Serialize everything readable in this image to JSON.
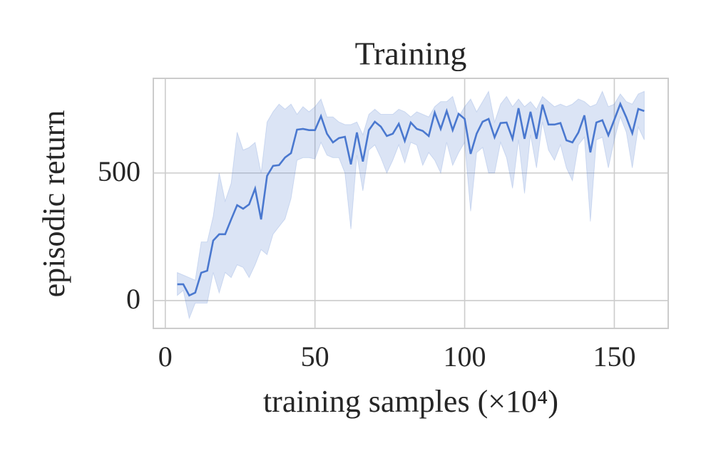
{
  "chart_data": {
    "type": "line",
    "title": "Training",
    "xlabel": "training samples (×10⁴)",
    "ylabel": "episodic return",
    "x": [
      4,
      6,
      8,
      10,
      12,
      14,
      16,
      18,
      20,
      22,
      24,
      26,
      28,
      30,
      32,
      34,
      36,
      38,
      40,
      42,
      44,
      46,
      48,
      50,
      52,
      54,
      56,
      58,
      60,
      62,
      64,
      66,
      68,
      70,
      72,
      74,
      76,
      78,
      80,
      82,
      84,
      86,
      88,
      90,
      92,
      94,
      96,
      98,
      100,
      102,
      104,
      106,
      108,
      110,
      112,
      114,
      116,
      118,
      120,
      122,
      124,
      126,
      128,
      130,
      132,
      134,
      136,
      138,
      140,
      142,
      144,
      146,
      148,
      150,
      152,
      154,
      156,
      158,
      160
    ],
    "series": [
      {
        "color": "#4a78cf",
        "values": [
          64,
          64,
          20,
          31,
          109,
          117,
          235,
          260,
          260,
          318,
          374,
          360,
          377,
          439,
          318,
          489,
          528,
          531,
          561,
          578,
          670,
          673,
          668,
          668,
          723,
          654,
          620,
          637,
          642,
          534,
          659,
          545,
          668,
          701,
          682,
          645,
          654,
          693,
          626,
          698,
          673,
          665,
          645,
          737,
          673,
          743,
          668,
          732,
          712,
          575,
          654,
          701,
          712,
          640,
          696,
          698,
          634,
          754,
          634,
          740,
          634,
          768,
          690,
          690,
          696,
          628,
          620,
          659,
          726,
          581,
          698,
          707,
          648,
          709,
          771,
          718,
          656,
          751,
          743
        ],
        "upper": [
          110,
          100,
          90,
          80,
          230,
          230,
          330,
          500,
          390,
          460,
          660,
          590,
          600,
          620,
          500,
          700,
          740,
          770,
          750,
          770,
          730,
          760,
          740,
          760,
          790,
          720,
          720,
          700,
          690,
          690,
          700,
          650,
          730,
          750,
          730,
          730,
          730,
          750,
          740,
          720,
          740,
          730,
          720,
          760,
          780,
          780,
          800,
          720,
          760,
          790,
          740,
          780,
          820,
          700,
          770,
          800,
          760,
          790,
          760,
          780,
          750,
          800,
          780,
          760,
          770,
          760,
          770,
          790,
          780,
          760,
          770,
          820,
          760,
          770,
          810,
          780,
          770,
          810,
          820
        ],
        "lower": [
          20,
          40,
          -70,
          -10,
          -10,
          -10,
          110,
          30,
          110,
          90,
          140,
          130,
          90,
          140,
          200,
          180,
          260,
          290,
          320,
          400,
          550,
          560,
          560,
          555,
          620,
          570,
          560,
          560,
          500,
          280,
          570,
          430,
          590,
          610,
          560,
          500,
          550,
          610,
          540,
          620,
          610,
          530,
          580,
          550,
          500,
          620,
          530,
          580,
          620,
          350,
          580,
          600,
          500,
          500,
          620,
          560,
          440,
          630,
          420,
          650,
          520,
          700,
          590,
          550,
          610,
          520,
          470,
          610,
          640,
          310,
          630,
          640,
          520,
          630,
          720,
          660,
          520,
          680,
          630
        ]
      }
    ],
    "xlim": [
      -4,
      168
    ],
    "ylim": [
      -109,
      871
    ],
    "xticks": [
      0,
      50,
      100,
      150
    ],
    "yticks": [
      0,
      500
    ],
    "grid": true
  }
}
